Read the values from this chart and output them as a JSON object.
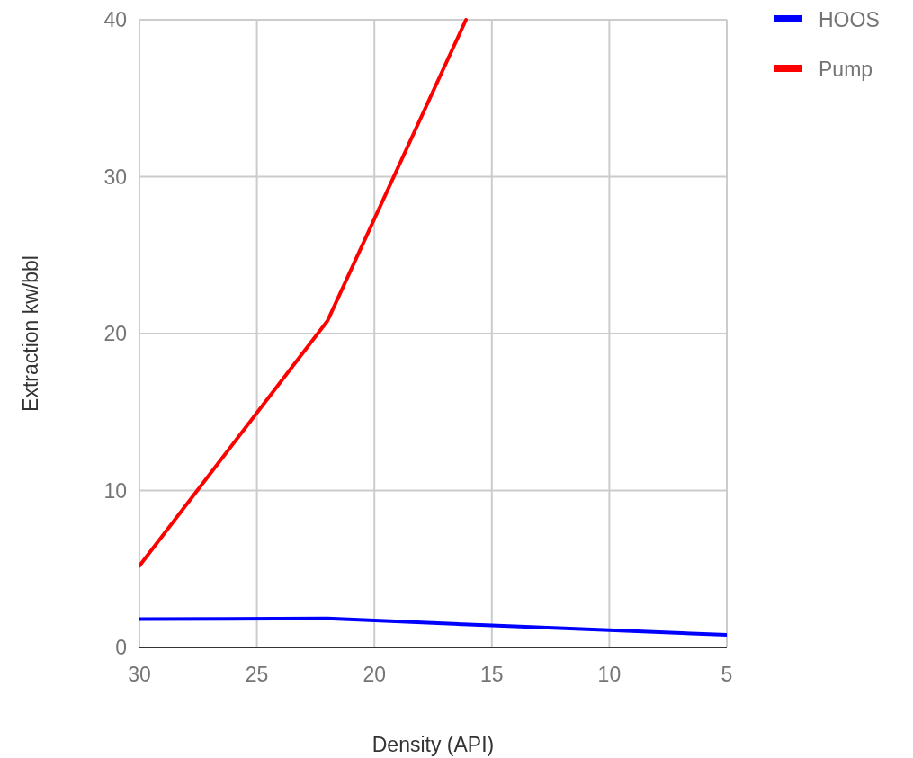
{
  "chart_data": {
    "type": "line",
    "xlabel": "Density (API)",
    "ylabel": "Extraction kw/bbl",
    "xlim": [
      30,
      5
    ],
    "xticks": [
      30,
      25,
      20,
      15,
      10,
      5
    ],
    "ylim": [
      0,
      40
    ],
    "yticks": [
      0,
      10,
      20,
      30,
      40
    ],
    "grid": true,
    "legend": "top right",
    "line_style": "solid",
    "marker": "none",
    "series": [
      {
        "name": "HOOS",
        "color": "#0000ff",
        "x": [
          30,
          22,
          15,
          10,
          5
        ],
        "values": [
          1.8,
          1.85,
          1.4,
          1.1,
          0.8
        ]
      },
      {
        "name": "Pump",
        "color": "#ff0000",
        "x": [
          30,
          22,
          16.1
        ],
        "values": [
          5.2,
          20.8,
          40
        ]
      }
    ]
  }
}
